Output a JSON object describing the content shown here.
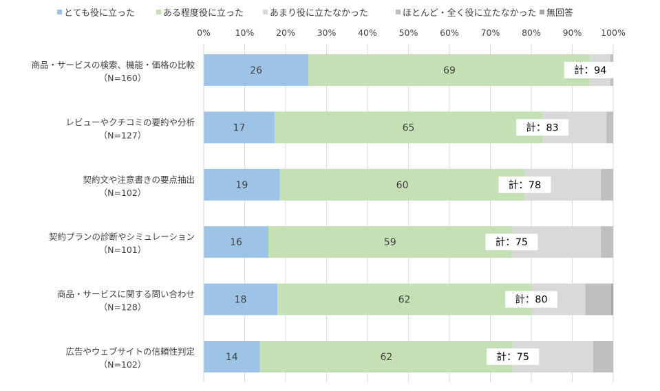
{
  "chart_data": {
    "type": "bar",
    "orientation": "horizontal",
    "stacked": "percent",
    "xlim": [
      0,
      100
    ],
    "x_ticks": [
      "0%",
      "10%",
      "20%",
      "30%",
      "40%",
      "50%",
      "60%",
      "70%",
      "80%",
      "90%",
      "100%"
    ],
    "legend_position": "top",
    "categories": [
      {
        "line1": "商品・サービスの検索、機能・価格の比較",
        "line2": "（N=160）"
      },
      {
        "line1": "レビューやクチコミの要約や分析",
        "line2": "（N=127）"
      },
      {
        "line1": "契約文や注意書きの要点抽出",
        "line2": "（N=102）"
      },
      {
        "line1": "契約プランの診断やシミュレーション",
        "line2": "（N=101）"
      },
      {
        "line1": "商品・サービスに関する問い合わせ",
        "line2": "（N=128）"
      },
      {
        "line1": "広告やウェブサイトの信頼性判定",
        "line2": "（N=102）"
      }
    ],
    "series": [
      {
        "name": "とても役に立った",
        "color": "#9dc3e6",
        "values": [
          25.6,
          17.3,
          18.6,
          15.8,
          18.0,
          13.7
        ],
        "labels": [
          "26",
          "17",
          "19",
          "16",
          "18",
          "14"
        ]
      },
      {
        "name": "ある程度役に立った",
        "color": "#c5e0b4",
        "values": [
          68.8,
          65.4,
          59.8,
          59.4,
          62.0,
          61.8
        ],
        "labels": [
          "69",
          "65",
          "60",
          "59",
          "62",
          "62"
        ]
      },
      {
        "name": "あまり役に立たなかった",
        "color": "#d9d9d9",
        "values": [
          4.9,
          15.7,
          18.6,
          21.8,
          13.2,
          19.6
        ],
        "labels": [
          "",
          "",
          "",
          "",
          "",
          ""
        ]
      },
      {
        "name": "ほとんど・全く役に立たなかった",
        "color": "#bfbfbf",
        "values": [
          0.7,
          1.6,
          3.0,
          3.0,
          6.3,
          4.9
        ],
        "labels": [
          "",
          "",
          "",
          "",
          "",
          ""
        ]
      },
      {
        "name": "無回答",
        "color": "#a6a6a6",
        "values": [
          0.0,
          0.0,
          0.0,
          0.0,
          0.5,
          0.0
        ],
        "labels": [
          "",
          "",
          "",
          "",
          "",
          ""
        ]
      }
    ],
    "totals": [
      "計：94",
      "計：83",
      "計：78",
      "計：75",
      "計：80",
      "計：75"
    ]
  }
}
